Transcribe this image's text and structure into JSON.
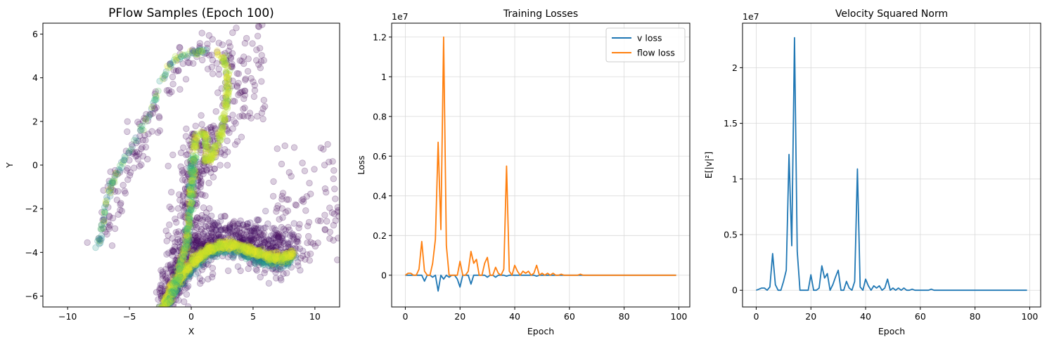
{
  "panels": {
    "scatter": {
      "title": "PFlow Samples (Epoch 100)",
      "xlabel": "X",
      "ylabel": "Y"
    },
    "losses": {
      "title": "Training Losses",
      "xlabel": "Epoch",
      "ylabel": "Loss",
      "offset_text": "1e7"
    },
    "velocity": {
      "title": "Velocity Squared Norm",
      "xlabel": "Epoch",
      "ylabel": "E[|v|²]",
      "offset_text": "1e7"
    }
  },
  "colors": {
    "v_loss": "#1f77b4",
    "flow_loss": "#ff7f0e",
    "viridis_low": "#440154",
    "viridis_mid": "#21918c",
    "viridis_high": "#fde725"
  },
  "chart_data": [
    {
      "type": "scatter",
      "title": "PFlow Samples (Epoch 100)",
      "xlabel": "X",
      "ylabel": "Y",
      "xlim": [
        -12,
        12
      ],
      "ylim": [
        -6.5,
        6.5
      ],
      "xticks": [
        -10,
        -5,
        0,
        5,
        10
      ],
      "yticks": [
        -6,
        -4,
        -2,
        0,
        2,
        4,
        6
      ],
      "grid": false,
      "colormap": "viridis",
      "alpha": 0.2,
      "structure": [
        {
          "name": "upper-left arm",
          "points": [
            [
              -7.5,
              -3.8
            ],
            [
              -7.2,
              -2.8
            ],
            [
              -6.9,
              -1.7
            ],
            [
              -6.5,
              -0.9
            ],
            [
              -6,
              -0.4
            ],
            [
              -5.3,
              0.4
            ],
            [
              -4.6,
              1.1
            ],
            [
              -4,
              1.7
            ],
            [
              -3.4,
              2.4
            ],
            [
              -3,
              2.9
            ],
            [
              -2.5,
              3.7
            ],
            [
              -1.9,
              4.4
            ],
            [
              -1.2,
              4.9
            ],
            [
              -0.3,
              5.1
            ],
            [
              0.6,
              5.2
            ],
            [
              1.4,
              5.2
            ]
          ]
        },
        {
          "name": "inner loop",
          "points": [
            [
              0.2,
              0.7
            ],
            [
              0.4,
              1.3
            ],
            [
              0.9,
              1.4
            ],
            [
              1.3,
              1.3
            ],
            [
              1.2,
              0.8
            ],
            [
              1.1,
              0.1
            ],
            [
              1.6,
              0.3
            ],
            [
              2.2,
              1.1
            ],
            [
              2.7,
              2.2
            ],
            [
              2.9,
              3.2
            ],
            [
              3,
              4.2
            ],
            [
              2.6,
              4.9
            ],
            [
              2.1,
              5.1
            ]
          ]
        },
        {
          "name": "left descending band",
          "points": [
            [
              0.2,
              0.4
            ],
            [
              0.1,
              -0.5
            ],
            [
              0,
              -1.5
            ],
            [
              -0.2,
              -2.5
            ],
            [
              -0.4,
              -3.5
            ],
            [
              -0.8,
              -4.5
            ],
            [
              -1.3,
              -5.5
            ],
            [
              -1.8,
              -6.4
            ]
          ]
        },
        {
          "name": "main curved band",
          "points": [
            [
              -2.3,
              -6.5
            ],
            [
              -1.5,
              -5.5
            ],
            [
              -0.5,
              -4.8
            ],
            [
              0.5,
              -4.2
            ],
            [
              1.5,
              -3.8
            ],
            [
              2.5,
              -3.6
            ],
            [
              3.5,
              -3.6
            ],
            [
              4.5,
              -3.8
            ],
            [
              5.5,
              -4
            ],
            [
              6.5,
              -4.2
            ],
            [
              7.5,
              -4.2
            ],
            [
              8.2,
              -4
            ]
          ]
        }
      ]
    },
    {
      "type": "line",
      "title": "Training Losses",
      "xlabel": "Epoch",
      "ylabel": "Loss",
      "y_scale_multiplier": "1e7",
      "xlim": [
        -5,
        104
      ],
      "ylim": [
        -0.16,
        1.27
      ],
      "xticks": [
        0,
        20,
        40,
        60,
        80,
        100
      ],
      "yticks": [
        0.0,
        0.2,
        0.4,
        0.6,
        0.8,
        1.0,
        1.2
      ],
      "legend": "top-right",
      "grid": true,
      "series": [
        {
          "name": "v loss",
          "x": [
            0,
            1,
            2,
            3,
            4,
            5,
            6,
            7,
            8,
            9,
            10,
            11,
            12,
            13,
            14,
            15,
            16,
            17,
            18,
            19,
            20,
            21,
            22,
            23,
            24,
            25,
            26,
            27,
            28,
            29,
            30,
            31,
            32,
            33,
            34,
            35,
            36,
            37,
            38,
            39,
            40,
            41,
            42,
            43,
            44,
            45,
            46,
            47,
            48,
            49,
            50,
            51,
            52,
            53,
            54,
            55,
            56,
            57,
            58,
            59,
            60,
            61,
            62,
            63,
            64,
            65,
            66,
            67,
            68,
            69,
            70,
            71,
            72,
            73,
            74,
            75,
            76,
            77,
            78,
            79,
            80,
            81,
            82,
            83,
            84,
            85,
            86,
            87,
            88,
            89,
            90,
            91,
            92,
            93,
            94,
            95,
            96,
            97,
            98,
            99
          ],
          "values": [
            0,
            0,
            0,
            0,
            0,
            0,
            0,
            -0.03,
            0,
            0,
            -0.01,
            0,
            -0.08,
            0,
            -0.02,
            0,
            -0.01,
            0,
            0,
            -0.02,
            -0.06,
            0,
            0,
            0,
            -0.045,
            0,
            0,
            0,
            0,
            0,
            -0.01,
            0,
            0,
            -0.01,
            0,
            0,
            0,
            -0.005,
            0,
            0,
            0,
            0,
            0,
            0,
            0,
            0,
            0,
            0,
            -0.005,
            0,
            0,
            0,
            0,
            0,
            0,
            0,
            0,
            0,
            0,
            0,
            0,
            0,
            0,
            0,
            0,
            0,
            0,
            0,
            0,
            0,
            0,
            0,
            0,
            0,
            0,
            0,
            0,
            0,
            0,
            0,
            0,
            0,
            0,
            0,
            0,
            0,
            0,
            0,
            0,
            0,
            0,
            0,
            0,
            0,
            0,
            0,
            0,
            0,
            0,
            0
          ]
        },
        {
          "name": "flow loss",
          "x": [
            0,
            1,
            2,
            3,
            4,
            5,
            6,
            7,
            8,
            9,
            10,
            11,
            12,
            13,
            14,
            15,
            16,
            17,
            18,
            19,
            20,
            21,
            22,
            23,
            24,
            25,
            26,
            27,
            28,
            29,
            30,
            31,
            32,
            33,
            34,
            35,
            36,
            37,
            38,
            39,
            40,
            41,
            42,
            43,
            44,
            45,
            46,
            47,
            48,
            49,
            50,
            51,
            52,
            53,
            54,
            55,
            56,
            57,
            58,
            59,
            60,
            61,
            62,
            63,
            64,
            65,
            66,
            67,
            68,
            69,
            70,
            71,
            72,
            73,
            74,
            75,
            76,
            77,
            78,
            79,
            80,
            81,
            82,
            83,
            84,
            85,
            86,
            87,
            88,
            89,
            90,
            91,
            92,
            93,
            94,
            95,
            96,
            97,
            98,
            99
          ],
          "values": [
            0,
            0.01,
            0.01,
            0,
            0,
            0.03,
            0.17,
            0.02,
            0,
            0,
            0.06,
            0.18,
            0.67,
            0.23,
            1.2,
            0.15,
            0,
            0,
            0,
            0,
            0.07,
            0,
            0,
            0.02,
            0.12,
            0.06,
            0.08,
            0,
            0,
            0.06,
            0.09,
            0,
            0,
            0.04,
            0.01,
            0,
            0.03,
            0.55,
            0.02,
            0,
            0.05,
            0.02,
            0,
            0.02,
            0.01,
            0.02,
            0,
            0.01,
            0.05,
            0,
            0.01,
            0,
            0.01,
            0,
            0.01,
            0,
            0,
            0.005,
            0,
            0,
            0,
            0,
            0,
            0,
            0.005,
            0,
            0,
            0,
            0,
            0,
            0,
            0,
            0,
            0,
            0,
            0,
            0,
            0,
            0,
            0,
            0,
            0,
            0,
            0,
            0,
            0,
            0,
            0,
            0,
            0,
            0,
            0,
            0,
            0,
            0,
            0,
            0,
            0,
            0,
            0
          ]
        }
      ]
    },
    {
      "type": "line",
      "title": "Velocity Squared Norm",
      "xlabel": "Epoch",
      "ylabel": "E[|v|²]",
      "y_scale_multiplier": "1e7",
      "xlim": [
        -5,
        104
      ],
      "ylim": [
        -0.15,
        2.4
      ],
      "xticks": [
        0,
        20,
        40,
        60,
        80,
        100
      ],
      "yticks": [
        0.0,
        0.5,
        1.0,
        1.5,
        2.0
      ],
      "grid": true,
      "series": [
        {
          "name": "",
          "x": [
            0,
            1,
            2,
            3,
            4,
            5,
            6,
            7,
            8,
            9,
            10,
            11,
            12,
            13,
            14,
            15,
            16,
            17,
            18,
            19,
            20,
            21,
            22,
            23,
            24,
            25,
            26,
            27,
            28,
            29,
            30,
            31,
            32,
            33,
            34,
            35,
            36,
            37,
            38,
            39,
            40,
            41,
            42,
            43,
            44,
            45,
            46,
            47,
            48,
            49,
            50,
            51,
            52,
            53,
            54,
            55,
            56,
            57,
            58,
            59,
            60,
            61,
            62,
            63,
            64,
            65,
            66,
            67,
            68,
            69,
            70,
            71,
            72,
            73,
            74,
            75,
            76,
            77,
            78,
            79,
            80,
            81,
            82,
            83,
            84,
            85,
            86,
            87,
            88,
            89,
            90,
            91,
            92,
            93,
            94,
            95,
            96,
            97,
            98,
            99
          ],
          "values": [
            0,
            0.01,
            0.02,
            0.02,
            0,
            0.03,
            0.33,
            0.05,
            0,
            0,
            0.08,
            0.18,
            1.22,
            0.4,
            2.27,
            0.35,
            0,
            0,
            0,
            0,
            0.14,
            0,
            0,
            0.02,
            0.22,
            0.11,
            0.15,
            0,
            0.05,
            0.12,
            0.18,
            0,
            0,
            0.08,
            0.02,
            0,
            0.08,
            1.09,
            0.03,
            0,
            0.1,
            0.04,
            0,
            0.04,
            0.02,
            0.04,
            0,
            0.02,
            0.1,
            0,
            0.02,
            0,
            0.02,
            0,
            0.02,
            0,
            0,
            0.01,
            0,
            0,
            0,
            0,
            0,
            0,
            0.01,
            0,
            0,
            0,
            0,
            0,
            0,
            0,
            0,
            0,
            0,
            0,
            0,
            0,
            0,
            0,
            0,
            0,
            0,
            0,
            0,
            0,
            0,
            0,
            0,
            0,
            0,
            0,
            0,
            0,
            0,
            0,
            0,
            0,
            0,
            0
          ]
        }
      ]
    }
  ]
}
